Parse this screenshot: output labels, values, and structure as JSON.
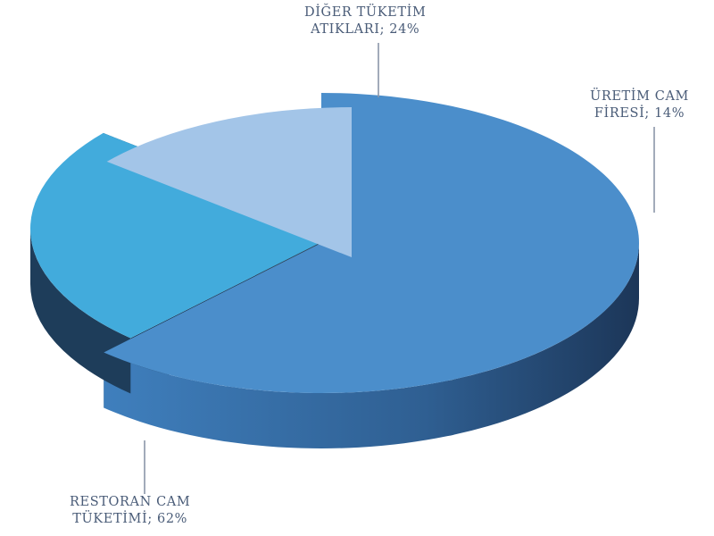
{
  "chart_data": {
    "type": "pie",
    "style": "3d-exploded",
    "slices": [
      {
        "line1": "RESTORAN CAM",
        "line2": "TÜKETİMİ; 62%",
        "value": 62,
        "color": "#4b8ecb"
      },
      {
        "line1": "DİĞER TÜKETİM",
        "line2": "ATIKLARI; 24%",
        "value": 24,
        "color": "#42abdc"
      },
      {
        "line1": "ÜRETİM CAM",
        "line2": "FİRESİ; 14%",
        "value": 14,
        "color": "#a3c5e8"
      }
    ]
  }
}
